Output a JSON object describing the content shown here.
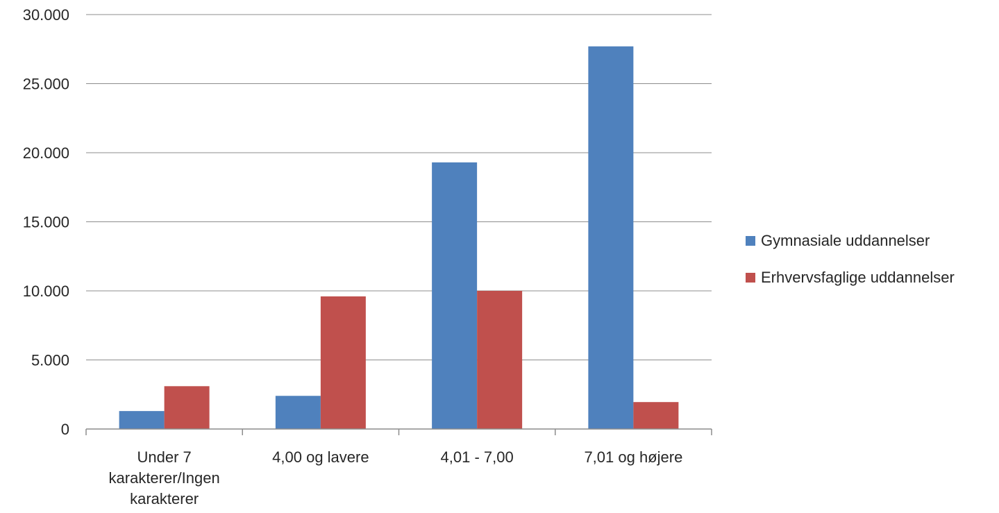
{
  "chart_data": {
    "type": "bar",
    "categories": [
      [
        "Under 7",
        "karakterer/Ingen",
        "karakterer"
      ],
      [
        "4,00 og lavere"
      ],
      [
        "4,01 - 7,00"
      ],
      [
        "7,01 og højere"
      ]
    ],
    "series": [
      {
        "name": "Gymnasiale uddannelser",
        "color": "#4F81BD",
        "values": [
          1300,
          2400,
          19300,
          27700
        ]
      },
      {
        "name": "Erhvervsfaglige uddannelser",
        "color": "#C0504D",
        "values": [
          3100,
          9600,
          10000,
          1950
        ]
      }
    ],
    "ylim": [
      0,
      30000
    ],
    "yticks": [
      0,
      5000,
      10000,
      15000,
      20000,
      25000,
      30000
    ],
    "ytick_labels": [
      "0",
      "5.000",
      "10.000",
      "15.000",
      "20.000",
      "25.000",
      "30.000"
    ],
    "grid": true,
    "legend_position": "right",
    "title": "",
    "xlabel": "",
    "ylabel": ""
  }
}
